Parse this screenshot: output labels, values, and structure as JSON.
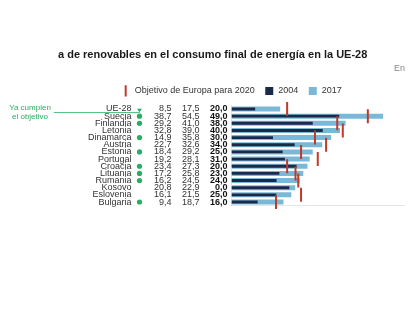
{
  "chart_data": {
    "type": "bar",
    "orientation": "horizontal",
    "title": "a de renovables en el consumo final de energía en la UE-28",
    "subtitle": "En",
    "categories": [
      "UE-28",
      "Suecia",
      "Finlandia",
      "Letonia",
      "Dinamarca",
      "Austria",
      "Estonia",
      "Portugal",
      "Croacia",
      "Lituania",
      "Rumania",
      "Kosovo",
      "Eslovenia",
      "Bulgaria"
    ],
    "series": [
      {
        "name": "2004",
        "color": "#1b2a4a",
        "values": [
          8.5,
          38.7,
          29.2,
          32.8,
          14.9,
          22.7,
          18.4,
          19.2,
          23.4,
          17.2,
          16.2,
          20.8,
          16.1,
          9.4
        ],
        "value_labels": [
          "8,5",
          "38,7",
          "29,2",
          "32,8",
          "14,9",
          "22,7",
          "18,4",
          "19,2",
          "23,4",
          "17,2",
          "16,2",
          "20,8",
          "16,1",
          "9,4"
        ]
      },
      {
        "name": "2017",
        "color": "#7ab8d8",
        "values": [
          17.5,
          54.5,
          41.0,
          39.0,
          35.8,
          32.6,
          29.2,
          28.1,
          27.3,
          25.8,
          24.5,
          22.9,
          21.5,
          18.7
        ],
        "value_labels": [
          "17,5",
          "54,5",
          "41,0",
          "39,0",
          "35,8",
          "32,6",
          "29,2",
          "28,1",
          "27,3",
          "25,8",
          "24,5",
          "22,9",
          "21,5",
          "18,7"
        ]
      },
      {
        "name": "Objetivo de Europa para 2020",
        "type": "scatter",
        "marker": "|",
        "color": "#c0392b",
        "values": [
          20.0,
          49.0,
          38.0,
          40.0,
          30.0,
          34.0,
          25.0,
          31.0,
          20.0,
          23.0,
          24.0,
          0.0,
          25.0,
          16.0
        ],
        "value_labels": [
          "20,0",
          "49,0",
          "38,0",
          "40,0",
          "30,0",
          "34,0",
          "25,0",
          "31,0",
          "20,0",
          "23,0",
          "24,0",
          "0,0",
          "25,0",
          "16,0"
        ]
      }
    ],
    "meets": {
      "color": "#27ae60",
      "values": [
        false,
        true,
        true,
        false,
        true,
        false,
        true,
        false,
        true,
        true,
        true,
        false,
        false,
        true
      ]
    },
    "annotations": [
      {
        "text": "Ya cumplen\nel objetivo",
        "color": "#27ae60"
      }
    ],
    "xlim": [
      0,
      62
    ],
    "tick_labels": "y",
    "grid": false,
    "legend": "top",
    "data_labels": true
  }
}
